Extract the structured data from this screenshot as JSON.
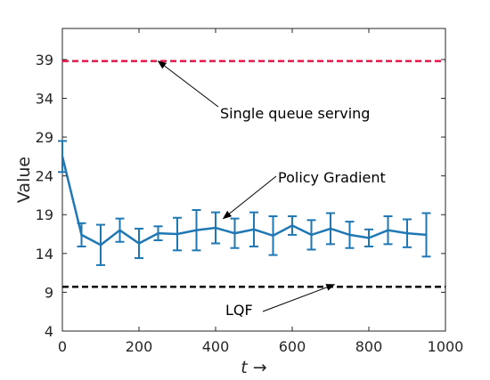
{
  "chart_data": {
    "type": "line",
    "title": "",
    "xlabel": "t →",
    "ylabel": "Value",
    "xlim": [
      0,
      1000
    ],
    "ylim": [
      4,
      43
    ],
    "xticks": [
      0,
      200,
      400,
      600,
      800,
      1000
    ],
    "yticks": [
      4,
      9,
      14,
      19,
      24,
      29,
      34,
      39
    ],
    "grid": false,
    "series": [
      {
        "name": "Policy Gradient",
        "style": "line-errorbar",
        "color": "#1f77b4",
        "x": [
          0,
          50,
          100,
          150,
          200,
          250,
          300,
          350,
          400,
          450,
          500,
          550,
          600,
          650,
          700,
          750,
          800,
          850,
          900,
          950
        ],
        "y": [
          26.5,
          16.4,
          15.1,
          17.0,
          15.3,
          16.6,
          16.5,
          17.0,
          17.3,
          16.6,
          17.1,
          16.3,
          17.6,
          16.4,
          17.2,
          16.4,
          16.0,
          17.0,
          16.6,
          16.4
        ],
        "err": [
          2.0,
          1.5,
          2.6,
          1.5,
          1.9,
          0.9,
          2.1,
          2.6,
          2.0,
          1.9,
          2.2,
          2.5,
          1.2,
          1.9,
          2.0,
          1.7,
          1.1,
          1.8,
          1.8,
          2.8
        ]
      },
      {
        "name": "Single queue serving",
        "style": "dashed",
        "color": "#e3174a",
        "x": [
          0,
          1000
        ],
        "y": [
          38.8,
          38.8
        ]
      },
      {
        "name": "LQF",
        "style": "dashed",
        "color": "#000000",
        "x": [
          0,
          1000
        ],
        "y": [
          9.7,
          9.7
        ]
      }
    ],
    "annotations": [
      {
        "text": "Single queue serving",
        "arrow_to": [
          250,
          38.8
        ]
      },
      {
        "text": "Policy Gradient",
        "arrow_to": [
          420,
          18.5
        ]
      },
      {
        "text": "LQF",
        "arrow_to": [
          710,
          10.0
        ]
      }
    ]
  }
}
